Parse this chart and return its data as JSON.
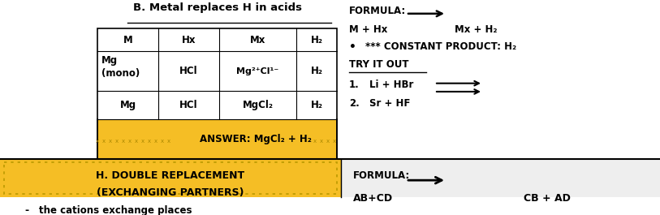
{
  "title": "B. Metal replaces H in acids",
  "table_headers": [
    "M",
    "Hx",
    "Mx",
    "H₂"
  ],
  "row1_col0a": "Mg",
  "row1_col0b": "(mono)",
  "row1_col1": "HCl",
  "row1_col2": "Mg²⁺Cl¹⁻",
  "row1_col3": "H₂",
  "row2_col0": "Mg",
  "row2_col1": "HCl",
  "row2_col2": "MgCl₂",
  "row2_col3": "H₂",
  "answer_text": "ANSWER: MgCl₂ + H₂",
  "formula_label": "FORMULA:",
  "formula_reactants": "M + Hx",
  "formula_products": "Mx + H₂",
  "bullet": "•",
  "constant_product": "*** CONSTANT PRODUCT: H₂",
  "try_it_out": "TRY IT OUT",
  "item1_num": "1.",
  "item1_expr": "Li + HBr",
  "item2_num": "2.",
  "item2_expr": "Sr + HF",
  "h_line1": "H. DOUBLE REPLACEMENT",
  "h_line2": "(EXCHANGING PARTNERS)",
  "h_line3": "the cations exchange places",
  "h_formula_label": "FORMULA:",
  "h_reactants": "AB+CD",
  "h_products": "CB + AD",
  "bg_white": "#ffffff",
  "gold_color": "#F5BE25",
  "gray_color": "#eeeeee",
  "black": "#000000"
}
